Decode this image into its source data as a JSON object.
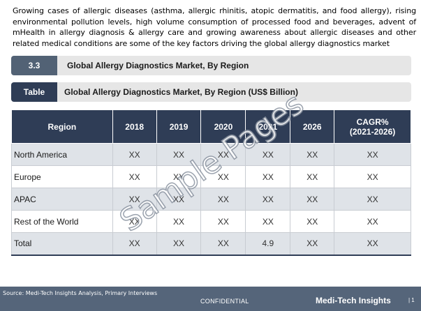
{
  "intro": "Growing cases of allergic diseases (asthma, allergic rhinitis, atopic dermatitis, and food allergy), rising environmental pollution levels, high volume consumption of processed food and beverages, advent of mHealth in allergy diagnosis & allergy care and growing awareness about allergic diseases and other related medical conditions are some of the key factors driving the global allergy diagnostics market",
  "section": {
    "number": "3.3",
    "title": "Global Allergy Diagnostics Market, By Region"
  },
  "table_heading": {
    "tag": "Table",
    "title": "Global Allergy Diagnostics Market, By Region (US$ Billion)"
  },
  "table": {
    "headers": [
      "Region",
      "2018",
      "2019",
      "2020",
      "2021",
      "2026",
      "CAGR%\n(2021-2026)"
    ],
    "rows": [
      [
        "North America",
        "XX",
        "XX",
        "XX",
        "XX",
        "XX",
        "XX"
      ],
      [
        "Europe",
        "XX",
        "XX",
        "XX",
        "XX",
        "XX",
        "XX"
      ],
      [
        "APAC",
        "XX",
        "XX",
        "XX",
        "XX",
        "XX",
        "XX"
      ],
      [
        "Rest of the World",
        "XX",
        "XX",
        "XX",
        "XX",
        "XX",
        "XX"
      ],
      [
        "Total",
        "XX",
        "XX",
        "XX",
        "4.9",
        "XX",
        "XX"
      ]
    ]
  },
  "watermark": "Sample Pages",
  "footer": {
    "source": "Source: Medi-Tech Insights Analysis, Primary Interviews",
    "confidential": "CONFIDENTIAL",
    "brand": "Medi-Tech Insights",
    "page": "| 1"
  }
}
